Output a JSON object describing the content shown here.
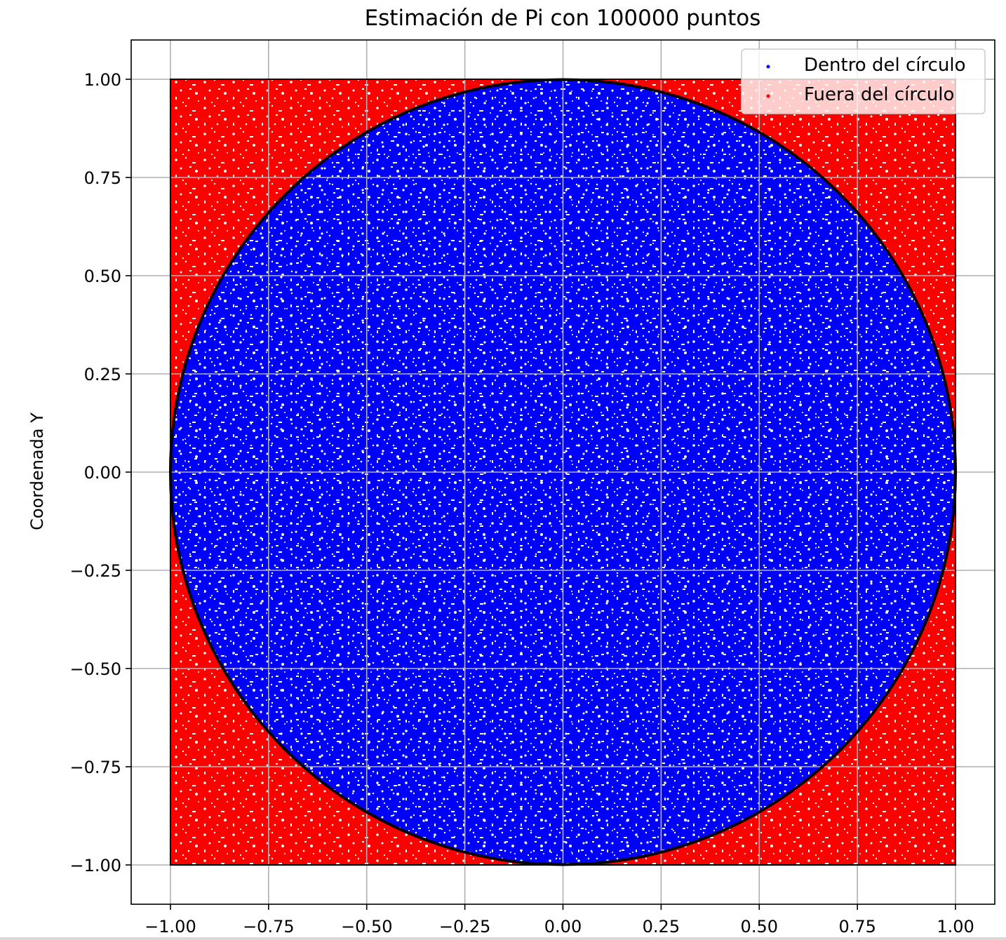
{
  "chart_data": {
    "type": "scatter",
    "title": "Estimación de Pi con 100000 puntos",
    "xlabel": "",
    "ylabel": "Coordenada Y",
    "xlim": [
      -1.1,
      1.1
    ],
    "ylim": [
      -1.1,
      1.1
    ],
    "x_ticks": [
      "−1.00",
      "−0.75",
      "−0.50",
      "−0.25",
      "0.00",
      "0.25",
      "0.50",
      "0.75",
      "1.00"
    ],
    "y_ticks": [
      "−1.00",
      "−0.75",
      "−0.50",
      "−0.25",
      "0.00",
      "0.25",
      "0.50",
      "0.75",
      "1.00"
    ],
    "tick_values": [
      -1.0,
      -0.75,
      -0.5,
      -0.25,
      0.0,
      0.25,
      0.5,
      0.75,
      1.0
    ],
    "grid": true,
    "legend_position": "top-right",
    "num_points": 100000,
    "sampling_region": {
      "x": [
        -1.0,
        1.0
      ],
      "y": [
        -1.0,
        1.0
      ]
    },
    "circle": {
      "center": [
        0.0,
        0.0
      ],
      "radius": 1.0,
      "color": "#000000"
    },
    "series": [
      {
        "name": "Dentro del círculo",
        "color": "#0000ff",
        "condition": "x^2 + y^2 <= 1"
      },
      {
        "name": "Fuera del círculo",
        "color": "#ff0000",
        "condition": "x^2 + y^2 > 1"
      }
    ]
  }
}
